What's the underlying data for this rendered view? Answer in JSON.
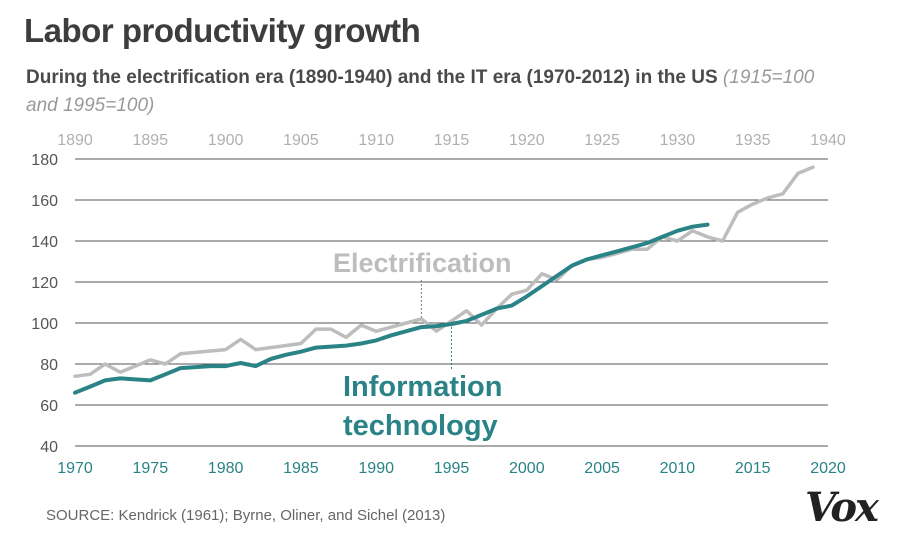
{
  "header": {
    "title": "Labor productivity growth",
    "subtitle_main": "During the electrification era (1890-1940) and the IT era (1970-2012) in the US",
    "subtitle_note": "(1915=100 and 1995=100)"
  },
  "footer": {
    "source": "SOURCE: Kendrick (1961); Byrne, Oliner, and Sichel (2013)",
    "logo": "Vox"
  },
  "colors": {
    "electrification": "#bdbdbd",
    "it": "#2a8386",
    "top_axis_text": "#b0b0b0",
    "gridline": "#555555"
  },
  "chart_data": {
    "type": "line",
    "title": "Labor productivity growth",
    "ylim": [
      40,
      180
    ],
    "y_ticks": [
      40,
      60,
      80,
      100,
      120,
      140,
      160,
      180
    ],
    "grid": true,
    "top_axis": {
      "range": [
        1890,
        1940
      ],
      "ticks": [
        1890,
        1895,
        1900,
        1905,
        1910,
        1915,
        1920,
        1925,
        1930,
        1935,
        1940
      ]
    },
    "bottom_axis": {
      "range": [
        1970,
        2020
      ],
      "ticks": [
        1970,
        1975,
        1980,
        1985,
        1990,
        1995,
        2000,
        2005,
        2010,
        2015,
        2020
      ]
    },
    "series": [
      {
        "name": "Electrification",
        "axis": "top",
        "x": [
          1890,
          1891,
          1892,
          1893,
          1894,
          1895,
          1896,
          1897,
          1900,
          1901,
          1902,
          1905,
          1906,
          1907,
          1908,
          1909,
          1910,
          1911,
          1912,
          1913,
          1914,
          1915,
          1916,
          1917,
          1918,
          1919,
          1920,
          1921,
          1922,
          1923,
          1924,
          1925,
          1926,
          1927,
          1928,
          1929,
          1930,
          1931,
          1932,
          1933,
          1934,
          1935,
          1936,
          1937,
          1938,
          1939
        ],
        "values": [
          74,
          75,
          80,
          76,
          79,
          82,
          80,
          85,
          87,
          92,
          87,
          90,
          97,
          97,
          93,
          99,
          96,
          98,
          100,
          102,
          96,
          101,
          106,
          99,
          107,
          114,
          116,
          124,
          121,
          128,
          131,
          132,
          134,
          136,
          136,
          142,
          140,
          145,
          142,
          140,
          154,
          158,
          161,
          163,
          173,
          176
        ]
      },
      {
        "name": "Information technology",
        "axis": "bottom",
        "x": [
          1970,
          1971,
          1972,
          1973,
          1974,
          1975,
          1976,
          1977,
          1978,
          1979,
          1980,
          1981,
          1982,
          1983,
          1984,
          1985,
          1986,
          1987,
          1988,
          1989,
          1990,
          1991,
          1992,
          1993,
          1994,
          1995,
          1996,
          1997,
          1998,
          1999,
          2000,
          2001,
          2002,
          2003,
          2004,
          2005,
          2006,
          2007,
          2008,
          2009,
          2010,
          2011,
          2012
        ],
        "values": [
          66,
          69,
          72,
          73,
          72.5,
          72,
          75,
          78,
          78.5,
          79,
          79,
          80.5,
          79,
          82.5,
          84.5,
          86,
          88,
          88.5,
          89,
          90,
          91.5,
          94,
          96,
          98,
          98.5,
          99.5,
          101,
          104,
          107,
          108.5,
          113,
          118,
          123,
          128,
          131,
          133,
          135,
          137,
          139,
          142,
          145,
          147,
          148
        ]
      }
    ],
    "annotations": [
      {
        "label": "Electrification",
        "series": "Electrification"
      },
      {
        "label": "Information technology",
        "series": "Information technology",
        "lines": [
          "Information",
          "technology"
        ]
      }
    ]
  }
}
